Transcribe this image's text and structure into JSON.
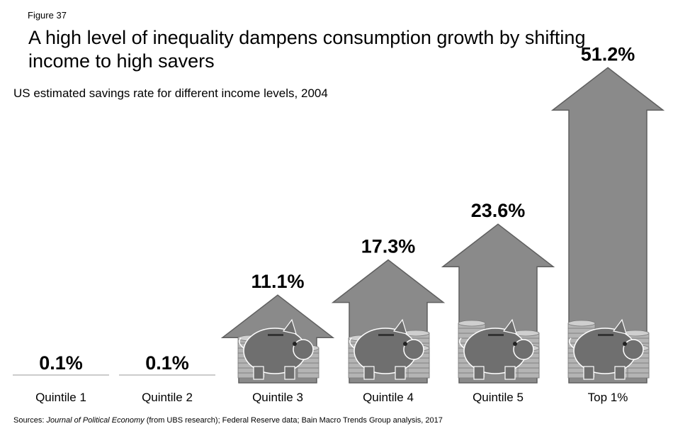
{
  "figure_label": "Figure 37",
  "title": "A high level of inequality dampens consumption growth by shifting income to high savers",
  "subtitle": "US estimated savings rate for different income levels, 2004",
  "source": {
    "prefix": "Sources: ",
    "journal": "Journal of Political Economy",
    "rest": " (from UBS research); Federal Reserve data; Bain Macro Trends Group analysis, 2017"
  },
  "colors": {
    "accent": "#e8262d",
    "arrow": "#8a8a8a",
    "arrow_edge": "#5f5f5f",
    "coin": "#b4b4b4",
    "pig": "#6f6f6f",
    "baseline": "#999999"
  },
  "chart_data": {
    "type": "bar",
    "title": "US estimated savings rate for different income levels, 2004",
    "categories": [
      "Quintile 1",
      "Quintile 2",
      "Quintile 3",
      "Quintile 4",
      "Quintile 5",
      "Top 1%"
    ],
    "values": [
      0.1,
      0.1,
      11.1,
      17.3,
      23.6,
      51.2
    ],
    "value_labels": [
      "0.1%",
      "0.1%",
      "11.1%",
      "17.3%",
      "23.6%",
      "51.2%"
    ],
    "unit": "%",
    "legend": "none",
    "grid": false
  }
}
